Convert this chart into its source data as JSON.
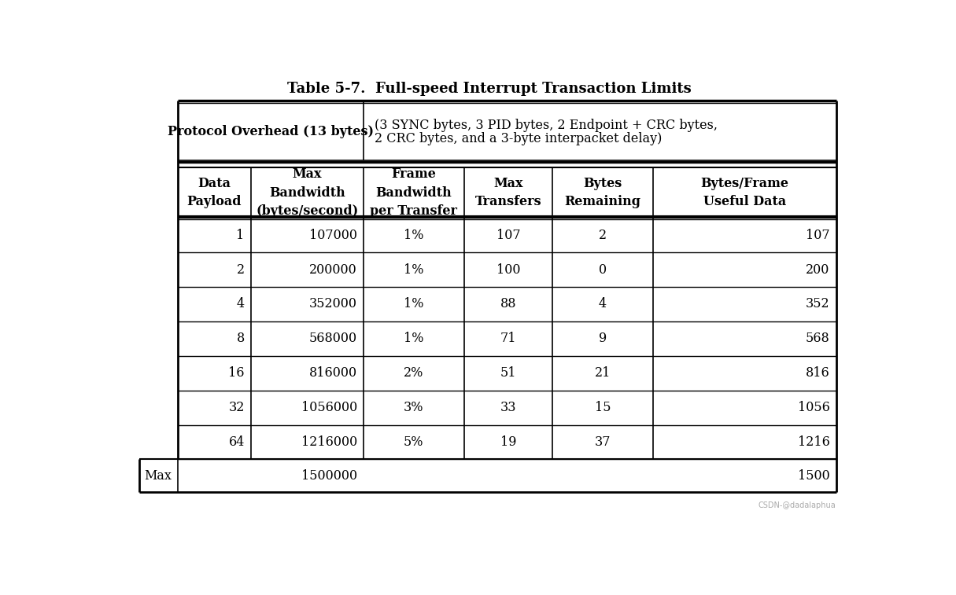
{
  "title": "Table 5-7.  Full-speed Interrupt Transaction Limits",
  "overhead_label": "Protocol Overhead (13 bytes)",
  "overhead_desc_line1": "(3 SYNC bytes, 3 PID bytes, 2 Endpoint + CRC bytes,",
  "overhead_desc_line2": "2 CRC bytes, and a 3-byte interpacket delay)",
  "col_headers": [
    "Data\nPayload",
    "Max\nBandwidth\n(bytes/second)",
    "Frame\nBandwidth\nper Transfer",
    "Max\nTransfers",
    "Bytes\nRemaining",
    "Bytes/Frame\nUseful Data"
  ],
  "rows": [
    [
      "1",
      "107000",
      "1%",
      "107",
      "2",
      "107"
    ],
    [
      "2",
      "200000",
      "1%",
      "100",
      "0",
      "200"
    ],
    [
      "4",
      "352000",
      "1%",
      "88",
      "4",
      "352"
    ],
    [
      "8",
      "568000",
      "1%",
      "71",
      "9",
      "568"
    ],
    [
      "16",
      "816000",
      "2%",
      "51",
      "21",
      "816"
    ],
    [
      "32",
      "1056000",
      "3%",
      "33",
      "15",
      "1056"
    ],
    [
      "64",
      "1216000",
      "5%",
      "19",
      "37",
      "1216"
    ]
  ],
  "last_row_max_bw": "1500000",
  "last_row_bytes_frame": "1500",
  "col_aligns": [
    "right",
    "right",
    "center",
    "center",
    "center",
    "right"
  ],
  "bg_color": "#ffffff",
  "border_color": "#000000",
  "text_color": "#000000",
  "title_fontsize": 13,
  "header_fontsize": 11.5,
  "cell_fontsize": 11.5,
  "watermark": "CSDN-@dadalaphua"
}
